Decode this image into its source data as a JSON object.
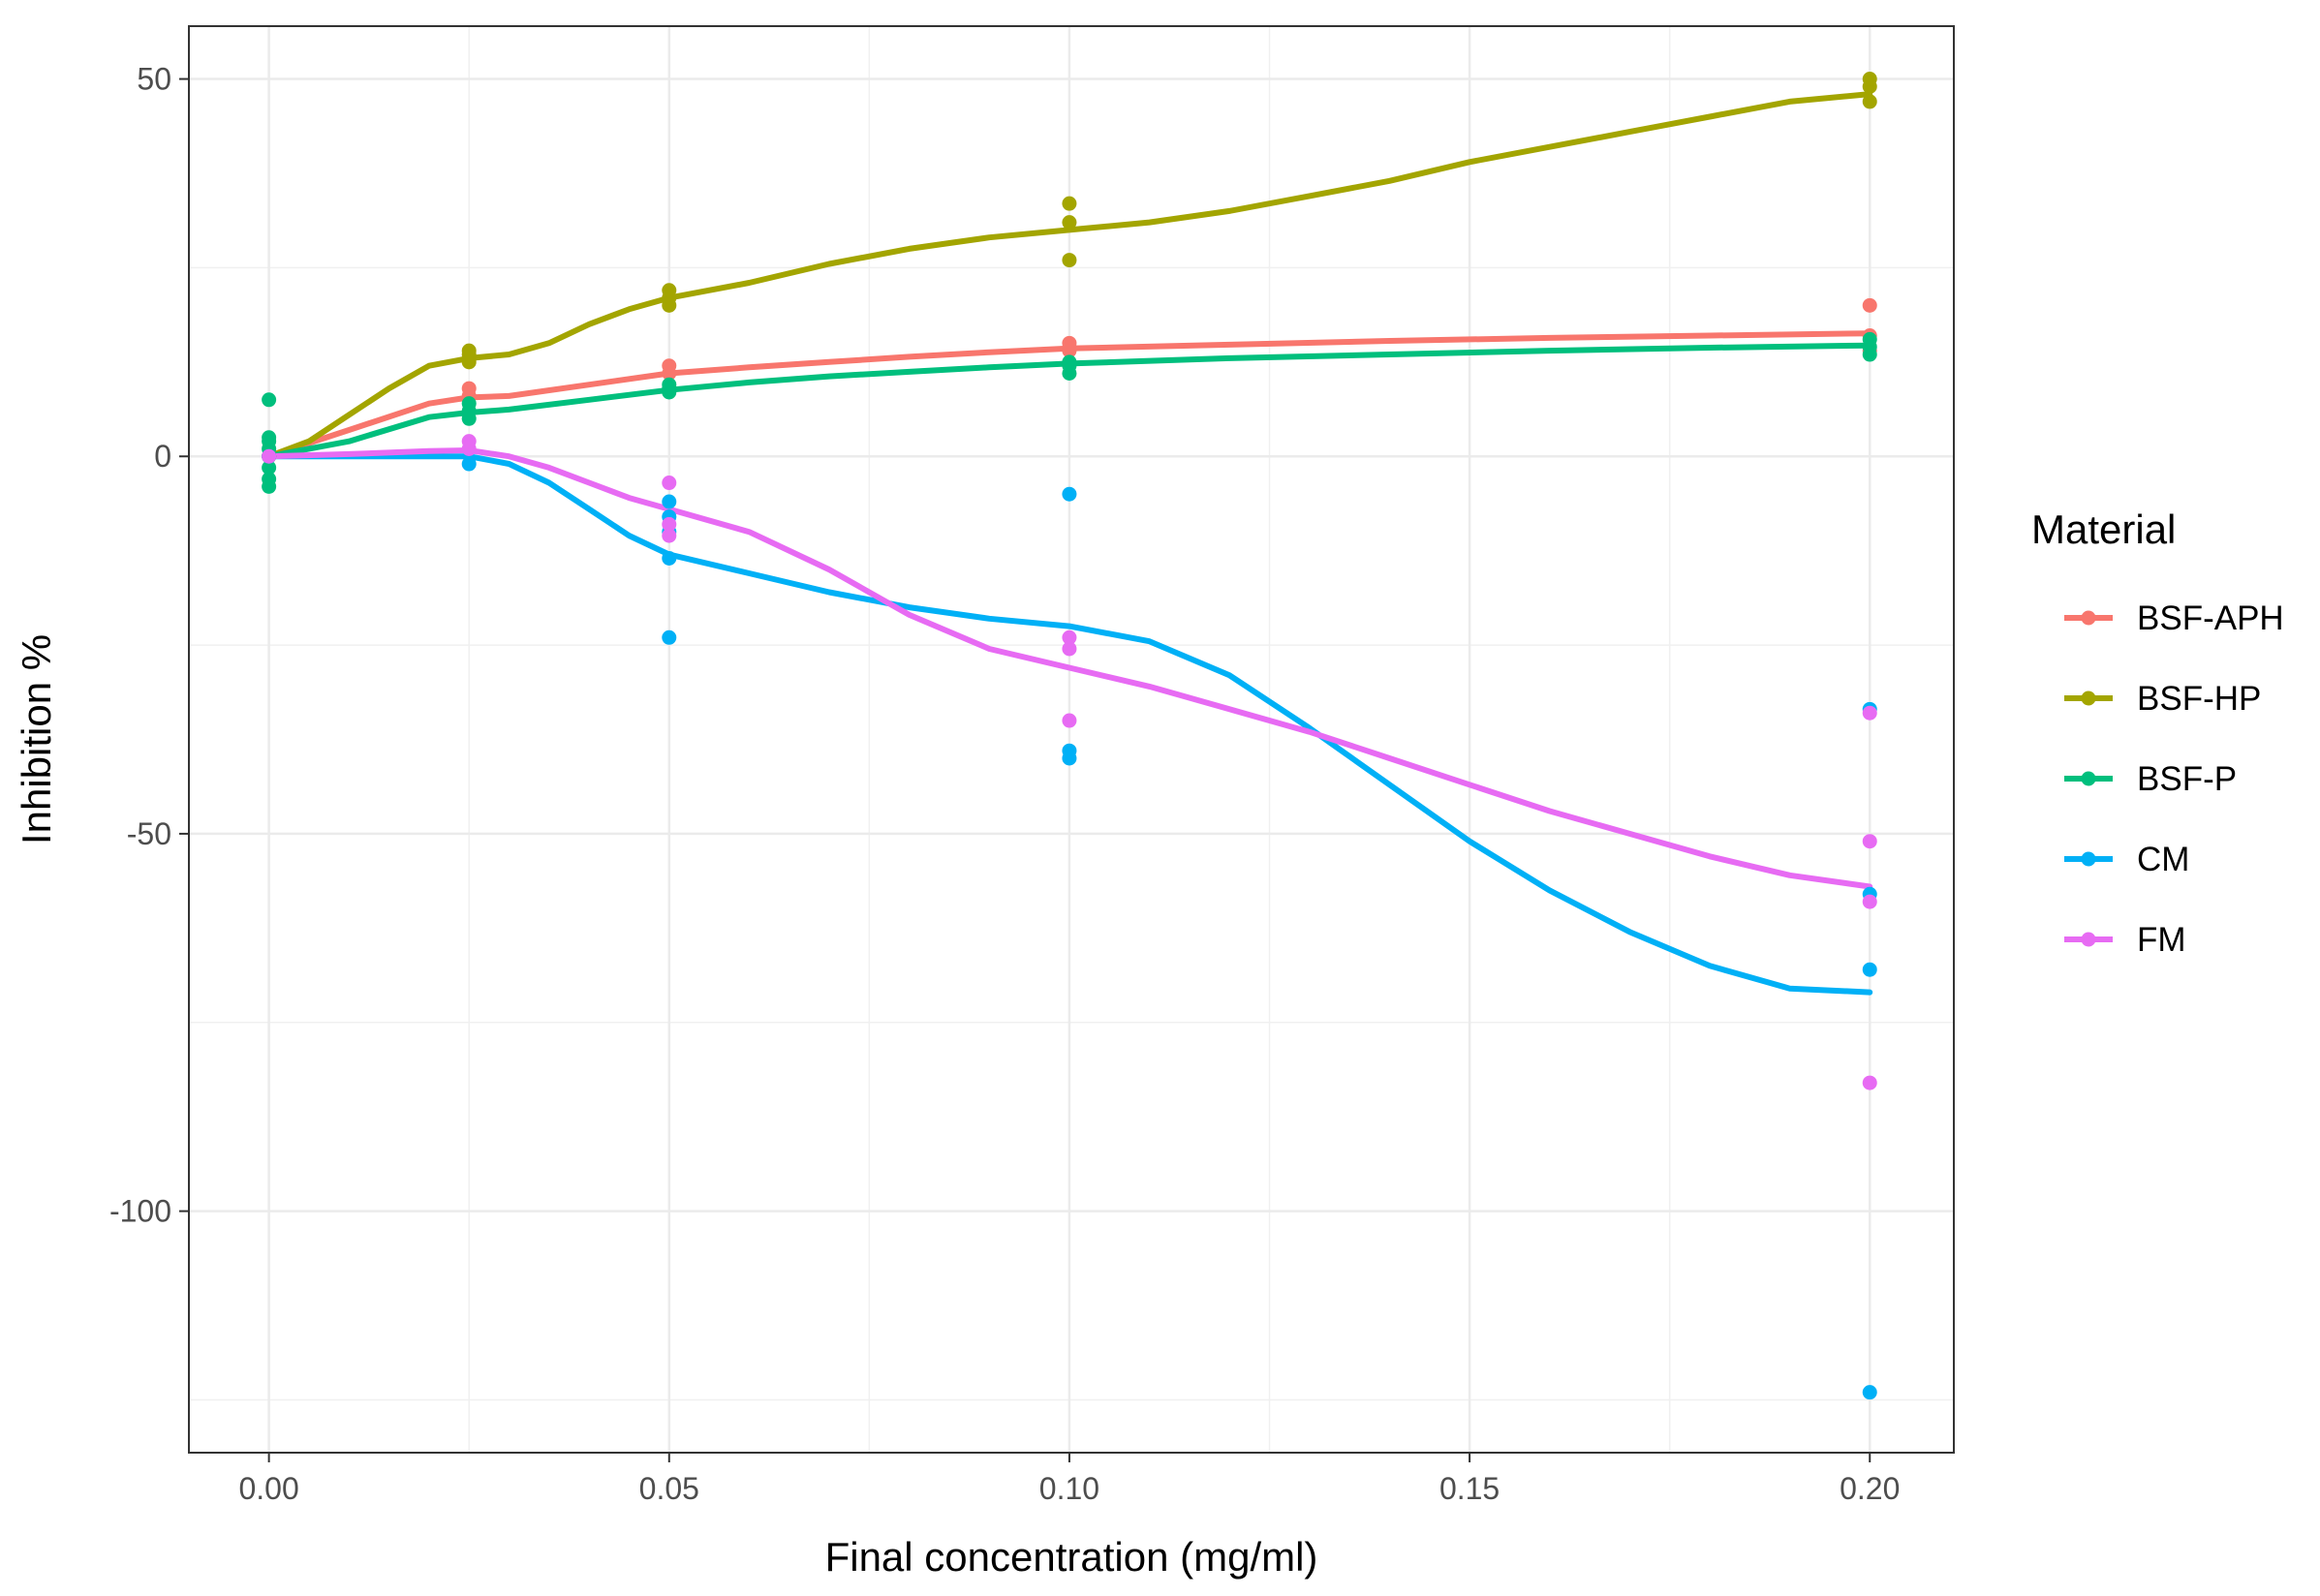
{
  "chart_data": {
    "type": "scatter",
    "xlabel": "Final concentration (mg/ml)",
    "ylabel": "Inhibition %",
    "xlim": [
      -0.01,
      0.2105
    ],
    "ylim": [
      -132,
      57
    ],
    "x_ticks": [
      0.0,
      0.05,
      0.1,
      0.15,
      0.2
    ],
    "x_tick_labels": [
      "0.00",
      "0.05",
      "0.10",
      "0.15",
      "0.20"
    ],
    "x_minor": [
      0.025,
      0.075,
      0.125,
      0.175
    ],
    "y_ticks": [
      50,
      0,
      -50,
      -100
    ],
    "y_tick_labels": [
      "50",
      "0",
      "-50",
      "-100"
    ],
    "y_minor": [
      25,
      -25,
      -75,
      -125
    ],
    "grid": true,
    "legend": {
      "title": "Material",
      "position": "right"
    },
    "series": [
      {
        "name": "BSF-APH",
        "color": "#F8766D",
        "points": [
          [
            0,
            0
          ],
          [
            0.025,
            8
          ],
          [
            0.025,
            9
          ],
          [
            0.05,
            11
          ],
          [
            0.05,
            12
          ],
          [
            0.1,
            14
          ],
          [
            0.1,
            15
          ],
          [
            0.2,
            14
          ],
          [
            0.2,
            16
          ],
          [
            0.2,
            20
          ]
        ],
        "smooth": [
          [
            0,
            0
          ],
          [
            0.01,
            3.5
          ],
          [
            0.02,
            7
          ],
          [
            0.025,
            7.8
          ],
          [
            0.03,
            8
          ],
          [
            0.04,
            9.5
          ],
          [
            0.05,
            11
          ],
          [
            0.06,
            11.8
          ],
          [
            0.07,
            12.5
          ],
          [
            0.08,
            13.2
          ],
          [
            0.09,
            13.8
          ],
          [
            0.1,
            14.3
          ],
          [
            0.12,
            14.8
          ],
          [
            0.14,
            15.3
          ],
          [
            0.16,
            15.7
          ],
          [
            0.18,
            16
          ],
          [
            0.2,
            16.3
          ]
        ]
      },
      {
        "name": "BSF-HP",
        "color": "#A3A500",
        "points": [
          [
            0,
            0
          ],
          [
            0.025,
            12.5
          ],
          [
            0.025,
            13.5
          ],
          [
            0.025,
            14
          ],
          [
            0.05,
            20
          ],
          [
            0.05,
            21
          ],
          [
            0.05,
            22
          ],
          [
            0.1,
            26
          ],
          [
            0.1,
            31
          ],
          [
            0.1,
            33.5
          ],
          [
            0.2,
            47
          ],
          [
            0.2,
            49
          ],
          [
            0.2,
            50
          ]
        ],
        "smooth": [
          [
            0,
            0
          ],
          [
            0.005,
            2
          ],
          [
            0.01,
            5.5
          ],
          [
            0.015,
            9
          ],
          [
            0.02,
            12
          ],
          [
            0.025,
            13
          ],
          [
            0.03,
            13.5
          ],
          [
            0.035,
            15
          ],
          [
            0.04,
            17.5
          ],
          [
            0.045,
            19.5
          ],
          [
            0.05,
            21
          ],
          [
            0.06,
            23
          ],
          [
            0.07,
            25.5
          ],
          [
            0.08,
            27.5
          ],
          [
            0.09,
            29
          ],
          [
            0.1,
            30
          ],
          [
            0.11,
            31
          ],
          [
            0.12,
            32.5
          ],
          [
            0.13,
            34.5
          ],
          [
            0.14,
            36.5
          ],
          [
            0.15,
            39
          ],
          [
            0.16,
            41
          ],
          [
            0.17,
            43
          ],
          [
            0.18,
            45
          ],
          [
            0.19,
            47
          ],
          [
            0.2,
            48
          ]
        ]
      },
      {
        "name": "BSF-P",
        "color": "#00BF7D",
        "points": [
          [
            0,
            -4
          ],
          [
            0,
            -3
          ],
          [
            0,
            -1.5
          ],
          [
            0,
            0
          ],
          [
            0,
            1
          ],
          [
            0,
            2
          ],
          [
            0,
            2.5
          ],
          [
            0,
            7.5
          ],
          [
            0.025,
            5
          ],
          [
            0.025,
            6
          ],
          [
            0.025,
            7
          ],
          [
            0.05,
            8.5
          ],
          [
            0.05,
            9
          ],
          [
            0.05,
            9.5
          ],
          [
            0.1,
            11
          ],
          [
            0.1,
            12
          ],
          [
            0.1,
            12.5
          ],
          [
            0.2,
            13.5
          ],
          [
            0.2,
            14.5
          ],
          [
            0.2,
            15.5
          ]
        ],
        "smooth": [
          [
            0,
            0
          ],
          [
            0.01,
            2
          ],
          [
            0.02,
            5.2
          ],
          [
            0.025,
            5.8
          ],
          [
            0.03,
            6.2
          ],
          [
            0.04,
            7.5
          ],
          [
            0.05,
            8.8
          ],
          [
            0.06,
            9.8
          ],
          [
            0.07,
            10.6
          ],
          [
            0.08,
            11.2
          ],
          [
            0.09,
            11.8
          ],
          [
            0.1,
            12.3
          ],
          [
            0.12,
            13
          ],
          [
            0.14,
            13.5
          ],
          [
            0.16,
            14
          ],
          [
            0.18,
            14.4
          ],
          [
            0.2,
            14.7
          ]
        ]
      },
      {
        "name": "CM",
        "color": "#00B0F6",
        "points": [
          [
            0,
            0
          ],
          [
            0.025,
            -1
          ],
          [
            0.05,
            -6
          ],
          [
            0.05,
            -8
          ],
          [
            0.05,
            -10
          ],
          [
            0.05,
            -13.5
          ],
          [
            0.05,
            -24
          ],
          [
            0.1,
            -5
          ],
          [
            0.1,
            -39
          ],
          [
            0.1,
            -40
          ],
          [
            0.2,
            -33.5
          ],
          [
            0.2,
            -58
          ],
          [
            0.2,
            -68
          ],
          [
            0.2,
            -124
          ]
        ],
        "smooth": [
          [
            0,
            0
          ],
          [
            0.02,
            0
          ],
          [
            0.025,
            0
          ],
          [
            0.03,
            -1
          ],
          [
            0.035,
            -3.5
          ],
          [
            0.04,
            -7
          ],
          [
            0.045,
            -10.5
          ],
          [
            0.05,
            -13
          ],
          [
            0.06,
            -15.5
          ],
          [
            0.07,
            -18
          ],
          [
            0.08,
            -20
          ],
          [
            0.09,
            -21.5
          ],
          [
            0.1,
            -22.5
          ],
          [
            0.11,
            -24.5
          ],
          [
            0.12,
            -29
          ],
          [
            0.13,
            -36
          ],
          [
            0.14,
            -43.5
          ],
          [
            0.15,
            -51
          ],
          [
            0.16,
            -57.5
          ],
          [
            0.17,
            -63
          ],
          [
            0.18,
            -67.5
          ],
          [
            0.19,
            -70.5
          ],
          [
            0.2,
            -71
          ]
        ]
      },
      {
        "name": "FM",
        "color": "#E76BF3",
        "points": [
          [
            0,
            0
          ],
          [
            0.025,
            1
          ],
          [
            0.025,
            2
          ],
          [
            0.05,
            -3.5
          ],
          [
            0.05,
            -9
          ],
          [
            0.05,
            -10.5
          ],
          [
            0.1,
            -24
          ],
          [
            0.1,
            -25.5
          ],
          [
            0.1,
            -35
          ],
          [
            0.2,
            -34
          ],
          [
            0.2,
            -51
          ],
          [
            0.2,
            -59
          ],
          [
            0.2,
            -83
          ]
        ],
        "smooth": [
          [
            0,
            0
          ],
          [
            0.01,
            0.3
          ],
          [
            0.02,
            0.7
          ],
          [
            0.025,
            0.8
          ],
          [
            0.03,
            0
          ],
          [
            0.035,
            -1.5
          ],
          [
            0.04,
            -3.5
          ],
          [
            0.045,
            -5.5
          ],
          [
            0.05,
            -7
          ],
          [
            0.06,
            -10
          ],
          [
            0.07,
            -15
          ],
          [
            0.08,
            -21
          ],
          [
            0.09,
            -25.5
          ],
          [
            0.1,
            -28
          ],
          [
            0.11,
            -30.5
          ],
          [
            0.12,
            -33.5
          ],
          [
            0.13,
            -36.5
          ],
          [
            0.14,
            -40
          ],
          [
            0.15,
            -43.5
          ],
          [
            0.16,
            -47
          ],
          [
            0.17,
            -50
          ],
          [
            0.18,
            -53
          ],
          [
            0.19,
            -55.5
          ],
          [
            0.2,
            -57
          ]
        ]
      }
    ]
  }
}
